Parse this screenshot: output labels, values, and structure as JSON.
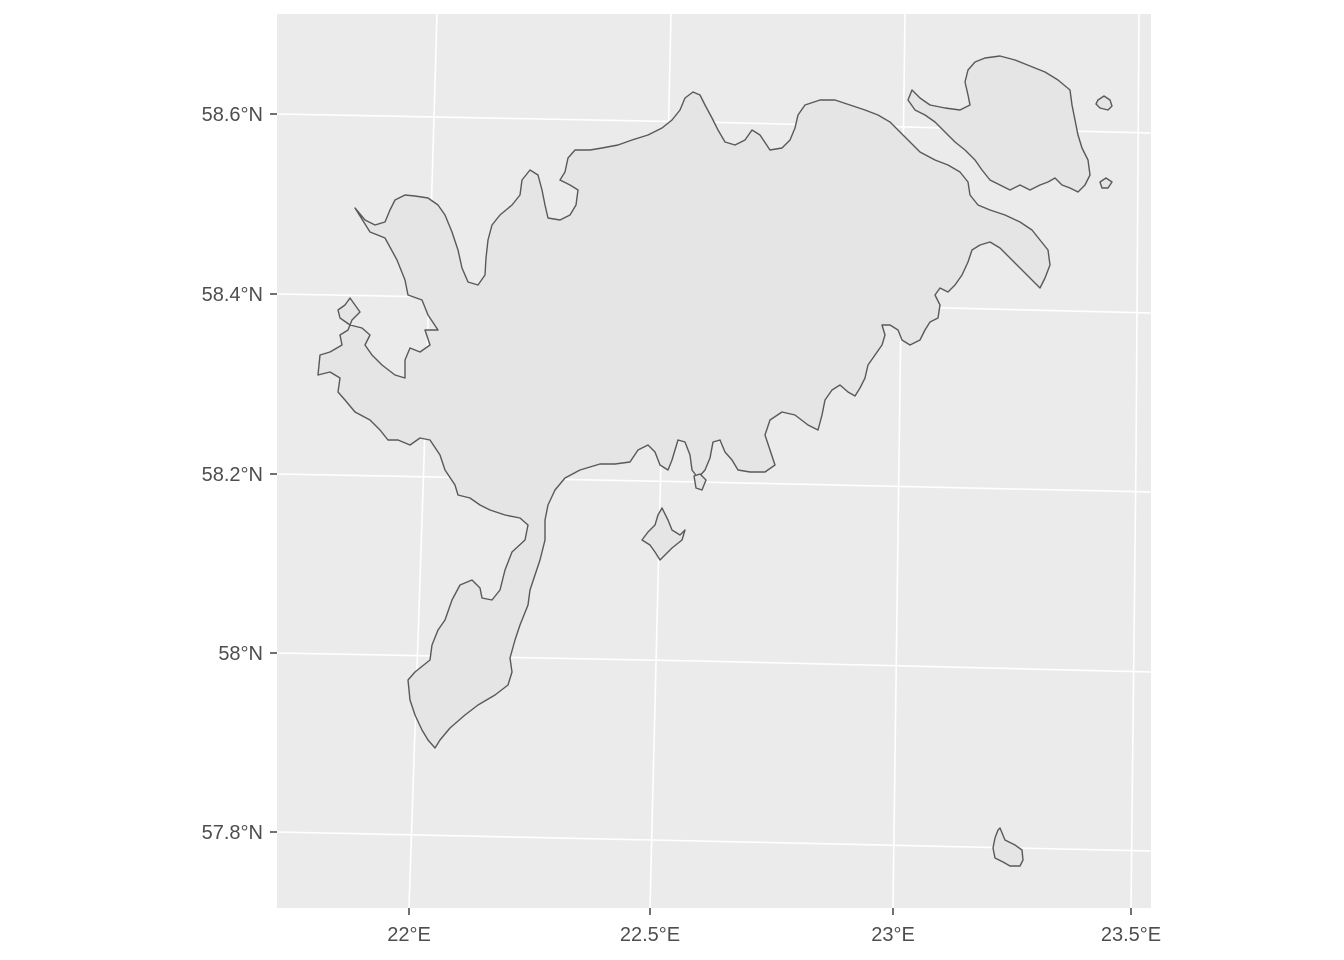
{
  "map": {
    "colors": {
      "panel": "#ebebeb",
      "grid": "#ffffff",
      "land_fill": "#e5e5e5",
      "land_stroke": "#595959",
      "tick_text": "#4d4d4d"
    },
    "y_axis": {
      "ticks": [
        {
          "value": 58.6,
          "label": "58.6°N"
        },
        {
          "value": 58.4,
          "label": "58.4°N"
        },
        {
          "value": 58.2,
          "label": "58.2°N"
        },
        {
          "value": 58.0,
          "label": "58°N"
        },
        {
          "value": 57.8,
          "label": "57.8°N"
        }
      ]
    },
    "x_axis": {
      "ticks": [
        {
          "value": 22.0,
          "label": "22°E"
        },
        {
          "value": 22.5,
          "label": "22.5°E"
        },
        {
          "value": 23.0,
          "label": "23°E"
        },
        {
          "value": 23.5,
          "label": "23.5°E"
        }
      ]
    },
    "features": [
      {
        "name": "main-island"
      },
      {
        "name": "north-east-island"
      },
      {
        "name": "small-island-central"
      },
      {
        "name": "small-island-south-east"
      },
      {
        "name": "islet-north-east"
      }
    ]
  }
}
